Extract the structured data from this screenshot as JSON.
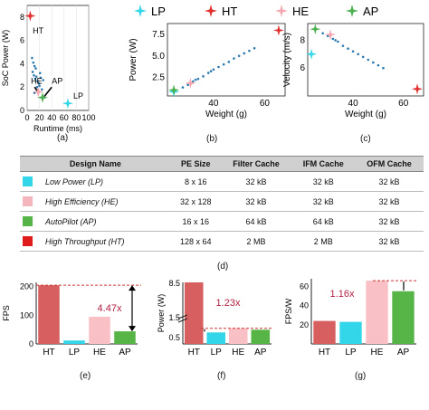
{
  "chart_data": [
    {
      "type": "scatter",
      "id": "a",
      "xlabel": "Runtime (ms)",
      "ylabel": "SoC Power (W)",
      "xlim": [
        0,
        100
      ],
      "ylim": [
        0,
        9
      ],
      "xticks": [
        "0",
        "20",
        "40",
        "60",
        "80",
        "100"
      ],
      "yticks": [
        "0",
        "2",
        "4",
        "6",
        "8"
      ],
      "series": [
        {
          "name": "HT",
          "color": "#e03030",
          "x": [
            5
          ],
          "y": [
            8.1
          ]
        },
        {
          "name": "HE",
          "color": "#f4a9b0",
          "x": [
            18
          ],
          "y": [
            1.6
          ]
        },
        {
          "name": "AP",
          "color": "#4caf50",
          "x": [
            25
          ],
          "y": [
            1.1
          ]
        },
        {
          "name": "LP",
          "color": "#33d6e8",
          "x": [
            66
          ],
          "y": [
            0.6
          ]
        }
      ],
      "other_points": {
        "x": [
          8,
          10,
          12,
          14,
          9,
          11,
          15,
          13,
          17,
          19,
          20,
          22,
          16,
          24,
          12,
          21,
          26
        ],
        "y": [
          4.5,
          4.1,
          3.8,
          3.6,
          3.3,
          3.0,
          2.9,
          2.7,
          2.5,
          2.3,
          2.1,
          2.8,
          2.0,
          1.8,
          1.5,
          3.2,
          2.6
        ]
      },
      "annotations": [
        "HT",
        "HE",
        "AP",
        "LP"
      ],
      "caption": "(a)"
    },
    {
      "type": "scatter",
      "id": "b",
      "xlabel": "Weight (g)",
      "ylabel": "Power (W)",
      "xlim": [
        22,
        68
      ],
      "ylim": [
        0.3,
        8.8
      ],
      "xticks": [
        "40",
        "60"
      ],
      "yticks": [
        "2.5",
        "5.0",
        "7.5"
      ],
      "series": [
        {
          "name": "LP",
          "color": "#33d6e8",
          "x": [
            24.5
          ],
          "y": [
            0.8
          ]
        },
        {
          "name": "HT",
          "color": "#e03030",
          "x": [
            65.5
          ],
          "y": [
            8.0
          ]
        },
        {
          "name": "HE",
          "color": "#f4a9b0",
          "x": [
            31
          ],
          "y": [
            1.8
          ]
        },
        {
          "name": "AP",
          "color": "#4caf50",
          "x": [
            24.5
          ],
          "y": [
            1.0
          ]
        }
      ],
      "other_points": {
        "x": [
          28,
          30,
          32,
          34,
          36,
          38,
          40,
          42,
          44,
          46,
          48,
          50,
          52,
          54,
          56,
          33,
          39
        ],
        "y": [
          1.3,
          1.6,
          2.0,
          2.3,
          2.6,
          3.0,
          3.4,
          3.7,
          4.0,
          4.3,
          4.7,
          5.0,
          5.3,
          5.6,
          5.9,
          2.2,
          3.2
        ]
      },
      "legend_position": "top",
      "caption": "(b)"
    },
    {
      "type": "scatter",
      "id": "c",
      "xlabel": "Weight (g)",
      "ylabel": "Velocity (m/s)",
      "xlim": [
        22,
        68
      ],
      "ylim": [
        4.0,
        9.2
      ],
      "xticks": [
        "40",
        "60"
      ],
      "yticks": [
        "6",
        "8"
      ],
      "series": [
        {
          "name": "LP",
          "color": "#33d6e8",
          "x": [
            23.5
          ],
          "y": [
            7.0
          ]
        },
        {
          "name": "HT",
          "color": "#e03030",
          "x": [
            65.5
          ],
          "y": [
            4.5
          ]
        },
        {
          "name": "HE",
          "color": "#f4a9b0",
          "x": [
            31
          ],
          "y": [
            8.4
          ]
        },
        {
          "name": "AP",
          "color": "#4caf50",
          "x": [
            25
          ],
          "y": [
            8.8
          ]
        }
      ],
      "other_points": {
        "x": [
          28,
          30,
          32,
          34,
          36,
          38,
          40,
          42,
          44,
          46,
          48,
          50,
          52,
          33
        ],
        "y": [
          8.5,
          8.3,
          8.1,
          7.9,
          7.6,
          7.4,
          7.2,
          7.0,
          6.8,
          6.6,
          6.4,
          6.2,
          6.0,
          8.0
        ]
      },
      "caption": "(c)"
    },
    {
      "type": "table",
      "id": "d",
      "headers": [
        "Design Name",
        "PE Size",
        "Filter Cache",
        "IFM Cache",
        "OFM Cache"
      ],
      "rows": [
        {
          "name": "Low Power (LP)",
          "color": "#33d6e8",
          "pe": "8 x 16",
          "filter": "32 kB",
          "ifm": "32 kB",
          "ofm": "32 kB"
        },
        {
          "name": "High Efficiency (HE)",
          "color": "#f4b5bd",
          "pe": "32 x 128",
          "filter": "32 kB",
          "ifm": "32 kB",
          "ofm": "32 kB"
        },
        {
          "name": "AutoPilot (AP)",
          "color": "#57b547",
          "pe": "16 x 16",
          "filter": "64 kB",
          "ifm": "64 kB",
          "ofm": "32 kB"
        },
        {
          "name": "High Throughput (HT)",
          "color": "#e01b1b",
          "pe": "128 x 64",
          "filter": "2 MB",
          "ifm": "2 MB",
          "ofm": "32 kB"
        }
      ],
      "caption": "(d)"
    },
    {
      "type": "bar",
      "id": "e",
      "categories": [
        "HT",
        "LP",
        "HE",
        "AP"
      ],
      "values": [
        205,
        12,
        95,
        44
      ],
      "colors": [
        "#d75f5f",
        "#33d6e8",
        "#f9c0c5",
        "#57b547"
      ],
      "ylabel": "FPS",
      "ylim": [
        0,
        215
      ],
      "yticks": [
        "0",
        "100",
        "200"
      ],
      "annotation": "4.47x",
      "caption": "(e)"
    },
    {
      "type": "bar",
      "id": "f",
      "categories": [
        "HT",
        "LP",
        "HE",
        "AP"
      ],
      "values": [
        8.5,
        0.85,
        1.05,
        0.98
      ],
      "colors": [
        "#d75f5f",
        "#33d6e8",
        "#f9c0c5",
        "#57b547"
      ],
      "ylabel": "Power (W)",
      "yticks": [
        "0.5",
        "1.5",
        "8.5"
      ],
      "annotation": "1.23x",
      "broken_axis": true,
      "caption": "(f)"
    },
    {
      "type": "bar",
      "id": "g",
      "categories": [
        "HT",
        "LP",
        "HE",
        "AP"
      ],
      "values": [
        24,
        23,
        66,
        55
      ],
      "colors": [
        "#d75f5f",
        "#33d6e8",
        "#f9c0c5",
        "#57b547"
      ],
      "ylabel": "FPS/W",
      "ylim": [
        0,
        68
      ],
      "yticks": [
        "20",
        "40",
        "60"
      ],
      "annotation": "1.16x",
      "caption": "(g)"
    }
  ]
}
